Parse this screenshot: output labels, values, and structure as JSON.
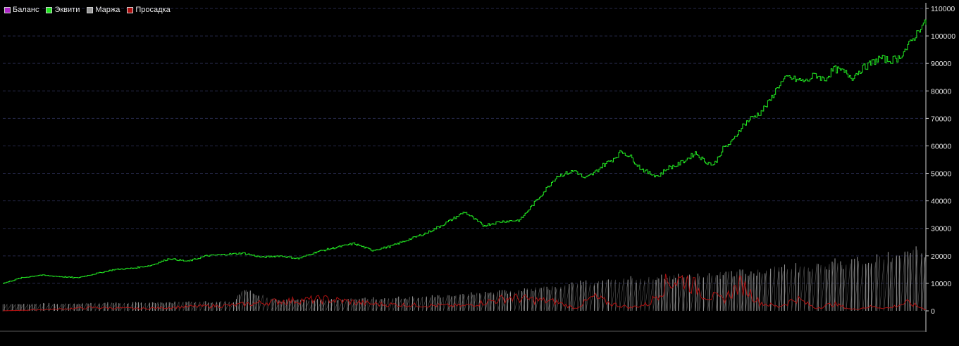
{
  "colors": {
    "background": "#000000",
    "grid": "#26284a",
    "axis": "#cfcfcf",
    "balance": "#b026c9",
    "equity": "#22e622",
    "margin": "#9a9a9a",
    "drawdown": "#b01010"
  },
  "legend": [
    {
      "label": "Баланс",
      "color": "#b026c9"
    },
    {
      "label": "Эквити",
      "color": "#22e622"
    },
    {
      "label": "Маржа",
      "color": "#9a9a9a"
    },
    {
      "label": "Просадка",
      "color": "#b01010"
    }
  ],
  "chart_data": {
    "type": "line",
    "title": "",
    "xlabel": "",
    "ylabel": "",
    "ylim": [
      0,
      110000
    ],
    "y_ticks": [
      "0",
      "10000",
      "20000",
      "30000",
      "40000",
      "50000",
      "60000",
      "70000",
      "80000",
      "90000",
      "100000",
      "110000"
    ],
    "grid": true,
    "legend_position": "top-left",
    "x_range": [
      0,
      100
    ],
    "series": [
      {
        "name": "Эквити",
        "color": "#22e622",
        "x": [
          0,
          2,
          4,
          6,
          8,
          10,
          12,
          14,
          16,
          18,
          20,
          22,
          24,
          26,
          28,
          30,
          32,
          34,
          36,
          38,
          40,
          42,
          44,
          46,
          48,
          50,
          52,
          54,
          56,
          58,
          60,
          62,
          63,
          64,
          65,
          66,
          67,
          68,
          69,
          70,
          71,
          72,
          73,
          74,
          75,
          76,
          77,
          78,
          79,
          80,
          81,
          82,
          83,
          84,
          85,
          86,
          87,
          88,
          89,
          90,
          91,
          92,
          93,
          94,
          95,
          96,
          97,
          98,
          99,
          99.5,
          100
        ],
        "values": [
          10000,
          12000,
          13000,
          12500,
          12000,
          13500,
          15000,
          15500,
          16500,
          19000,
          18000,
          20000,
          20500,
          21000,
          19500,
          20000,
          19000,
          21500,
          23000,
          24500,
          22000,
          23500,
          26000,
          28500,
          32000,
          36000,
          31000,
          32500,
          33000,
          41000,
          49000,
          51000,
          48000,
          50000,
          53000,
          55000,
          58000,
          56000,
          52000,
          50000,
          49000,
          52000,
          53000,
          55000,
          57500,
          54500,
          53000,
          59000,
          61500,
          67000,
          70000,
          72000,
          76000,
          82000,
          85000,
          84000,
          83500,
          86000,
          84000,
          88000,
          87000,
          85000,
          88000,
          90000,
          92000,
          91000,
          92000,
          96000,
          101000,
          104000,
          104500
        ]
      },
      {
        "name": "Маржа",
        "color": "#9a9a9a",
        "x": [
          0,
          5,
          10,
          15,
          20,
          25,
          26,
          30,
          35,
          40,
          45,
          50,
          55,
          60,
          65,
          70,
          75,
          80,
          85,
          90,
          95,
          100
        ],
        "values": [
          2500,
          2600,
          2800,
          3000,
          3200,
          3500,
          8000,
          3800,
          4200,
          4600,
          5000,
          6000,
          7200,
          9000,
          11000,
          12000,
          13000,
          14000,
          16000,
          17500,
          19000,
          22000
        ]
      },
      {
        "name": "Просадка",
        "color": "#b01010",
        "x": [
          0,
          5,
          10,
          15,
          20,
          25,
          30,
          35,
          40,
          45,
          50,
          55,
          60,
          62,
          64,
          66,
          68,
          70,
          72,
          74,
          76,
          78,
          80,
          82,
          84,
          86,
          88,
          90,
          92,
          94,
          96,
          98,
          100
        ],
        "values": [
          0,
          500,
          1200,
          800,
          1500,
          2000,
          3500,
          4200,
          2500,
          2000,
          1800,
          4800,
          3200,
          900,
          5000,
          2500,
          1200,
          2500,
          10500,
          11500,
          6000,
          4000,
          9800,
          3000,
          1500,
          4500,
          1000,
          2500,
          500,
          1500,
          1000,
          3000,
          500
        ]
      }
    ]
  }
}
